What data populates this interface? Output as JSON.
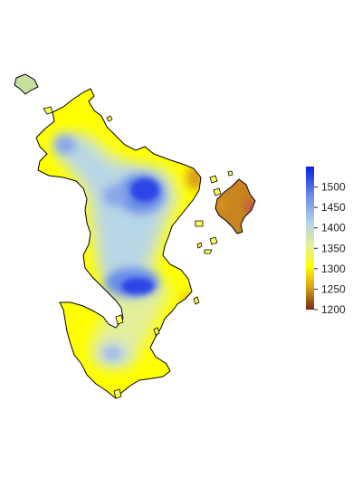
{
  "legend": {
    "min": 1200,
    "max": 1550,
    "ticks": [
      {
        "value": 1500,
        "label": "1500"
      },
      {
        "value": 1450,
        "label": "1450"
      },
      {
        "value": 1400,
        "label": "1400"
      },
      {
        "value": 1350,
        "label": "1350"
      },
      {
        "value": 1300,
        "label": "1300"
      },
      {
        "value": 1250,
        "label": "1250"
      },
      {
        "value": 1200,
        "label": "1200"
      }
    ],
    "gradient_stops": [
      {
        "offset": 0.0,
        "color": "#0a1fe0"
      },
      {
        "offset": 0.2,
        "color": "#6b8ce8"
      },
      {
        "offset": 0.4,
        "color": "#b7d6e6"
      },
      {
        "offset": 0.55,
        "color": "#e4ef9a"
      },
      {
        "offset": 0.7,
        "color": "#ffff00"
      },
      {
        "offset": 0.85,
        "color": "#d89a1a"
      },
      {
        "offset": 1.0,
        "color": "#7a2a10"
      }
    ]
  },
  "colors": {
    "outline": "#000000",
    "low": "#ffff00",
    "mid": "#b7d6e6",
    "high": "#2d44e6",
    "east_island": "#c8851f",
    "edge_red": "#c0504d"
  }
}
